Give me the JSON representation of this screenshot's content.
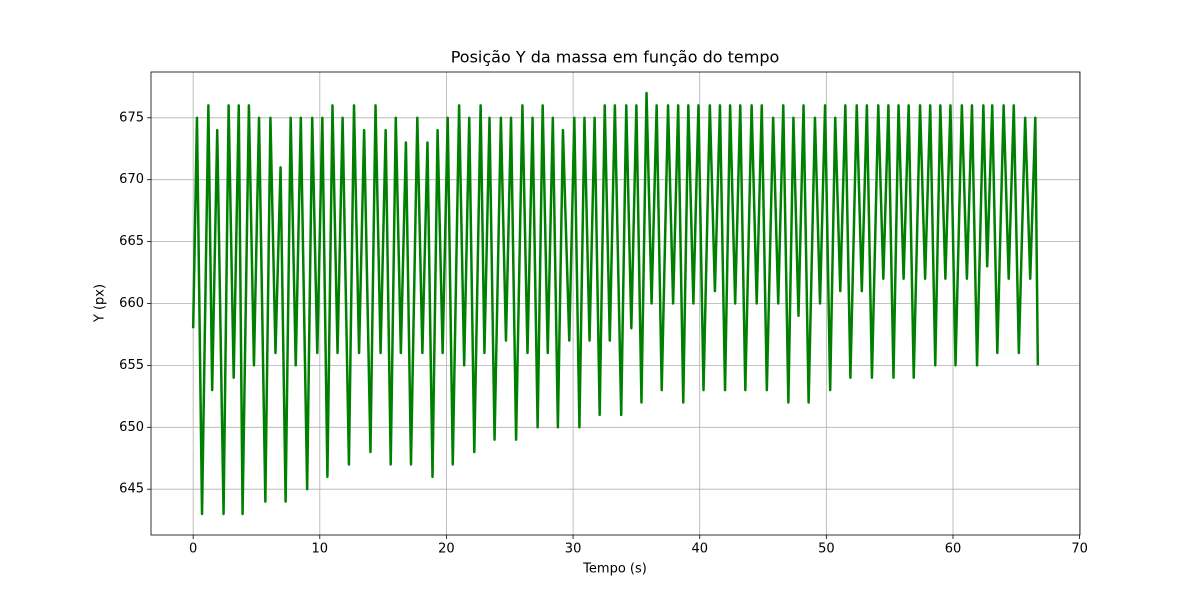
{
  "chart_data": {
    "type": "line",
    "title": "Posição Y da massa em função do tempo",
    "xlabel": "Tempo (s)",
    "ylabel": "Y (px)",
    "xlim": [
      -3.33,
      70.03
    ],
    "ylim": [
      641.3,
      678.7
    ],
    "xticks": [
      0,
      10,
      20,
      30,
      40,
      50,
      60,
      70
    ],
    "yticks": [
      645,
      650,
      655,
      660,
      665,
      670,
      675
    ],
    "grid": true,
    "series": [
      {
        "color": "#008000",
        "x": [
          0,
          0.3,
          0.7,
          1.2,
          1.5,
          1.9,
          2.4,
          2.8,
          3.2,
          3.6,
          3.9,
          4.4,
          4.8,
          5.2,
          5.7,
          6.1,
          6.5,
          6.9,
          7.3,
          7.7,
          8.1,
          8.5,
          9.0,
          9.4,
          9.8,
          10.2,
          10.6,
          11.0,
          11.4,
          11.8,
          12.3,
          12.7,
          13.1,
          13.5,
          14.0,
          14.4,
          14.8,
          15.2,
          15.6,
          16.0,
          16.4,
          16.8,
          17.2,
          17.7,
          18.1,
          18.5,
          18.9,
          19.3,
          19.7,
          20.1,
          20.5,
          21.0,
          21.4,
          21.8,
          22.2,
          22.7,
          23.0,
          23.4,
          23.8,
          24.3,
          24.7,
          25.1,
          25.5,
          26.0,
          26.4,
          26.8,
          27.2,
          27.6,
          28.0,
          28.4,
          28.8,
          29.2,
          29.7,
          30.1,
          30.5,
          30.9,
          31.3,
          31.7,
          32.1,
          32.5,
          32.9,
          33.3,
          33.8,
          34.2,
          34.6,
          35.0,
          35.4,
          35.8,
          36.2,
          36.6,
          37.0,
          37.5,
          37.9,
          38.3,
          38.7,
          39.1,
          39.5,
          39.9,
          40.3,
          40.8,
          41.2,
          41.6,
          42.0,
          42.4,
          42.8,
          43.2,
          43.6,
          44.1,
          44.5,
          44.9,
          45.3,
          45.8,
          46.2,
          46.6,
          47.0,
          47.4,
          47.8,
          48.2,
          48.6,
          49.1,
          49.5,
          49.9,
          50.3,
          50.7,
          51.1,
          51.5,
          51.9,
          52.4,
          52.8,
          53.2,
          53.6,
          54.1,
          54.5,
          54.9,
          55.3,
          55.7,
          56.1,
          56.5,
          56.9,
          57.4,
          57.8,
          58.2,
          58.6,
          59.0,
          59.4,
          59.8,
          60.2,
          60.7,
          61.1,
          61.5,
          61.9,
          62.4,
          62.7,
          63.1,
          63.5,
          64.0,
          64.4,
          64.8,
          65.2,
          65.7,
          66.1,
          66.5,
          66.7
        ],
        "values": [
          658,
          675,
          643,
          676,
          653,
          674,
          643,
          676,
          654,
          676,
          643,
          676,
          655,
          675,
          644,
          675,
          656,
          671,
          644,
          675,
          655,
          675,
          645,
          675,
          656,
          675,
          646,
          676,
          656,
          675,
          647,
          676,
          656,
          674,
          648,
          676,
          656,
          674,
          647,
          675,
          656,
          673,
          647,
          675,
          656,
          673,
          646,
          674,
          656,
          675,
          647,
          676,
          655,
          675,
          648,
          676,
          656,
          675,
          649,
          675,
          657,
          675,
          649,
          676,
          656,
          675,
          650,
          676,
          656,
          675,
          650,
          674,
          657,
          675,
          650,
          675,
          657,
          675,
          651,
          676,
          657,
          676,
          651,
          676,
          658,
          676,
          652,
          677,
          660,
          676,
          653,
          676,
          660,
          676,
          652,
          676,
          660,
          676,
          653,
          676,
          661,
          676,
          653,
          676,
          660,
          676,
          653,
          676,
          660,
          676,
          653,
          675,
          660,
          676,
          652,
          675,
          659,
          676,
          652,
          675,
          660,
          676,
          653,
          675,
          661,
          676,
          654,
          676,
          661,
          676,
          654,
          676,
          662,
          676,
          654,
          676,
          662,
          676,
          654,
          676,
          662,
          676,
          655,
          676,
          662,
          676,
          655,
          676,
          662,
          676,
          655,
          676,
          663,
          676,
          656,
          676,
          662,
          676,
          656,
          675,
          662,
          675,
          655
        ]
      }
    ]
  }
}
